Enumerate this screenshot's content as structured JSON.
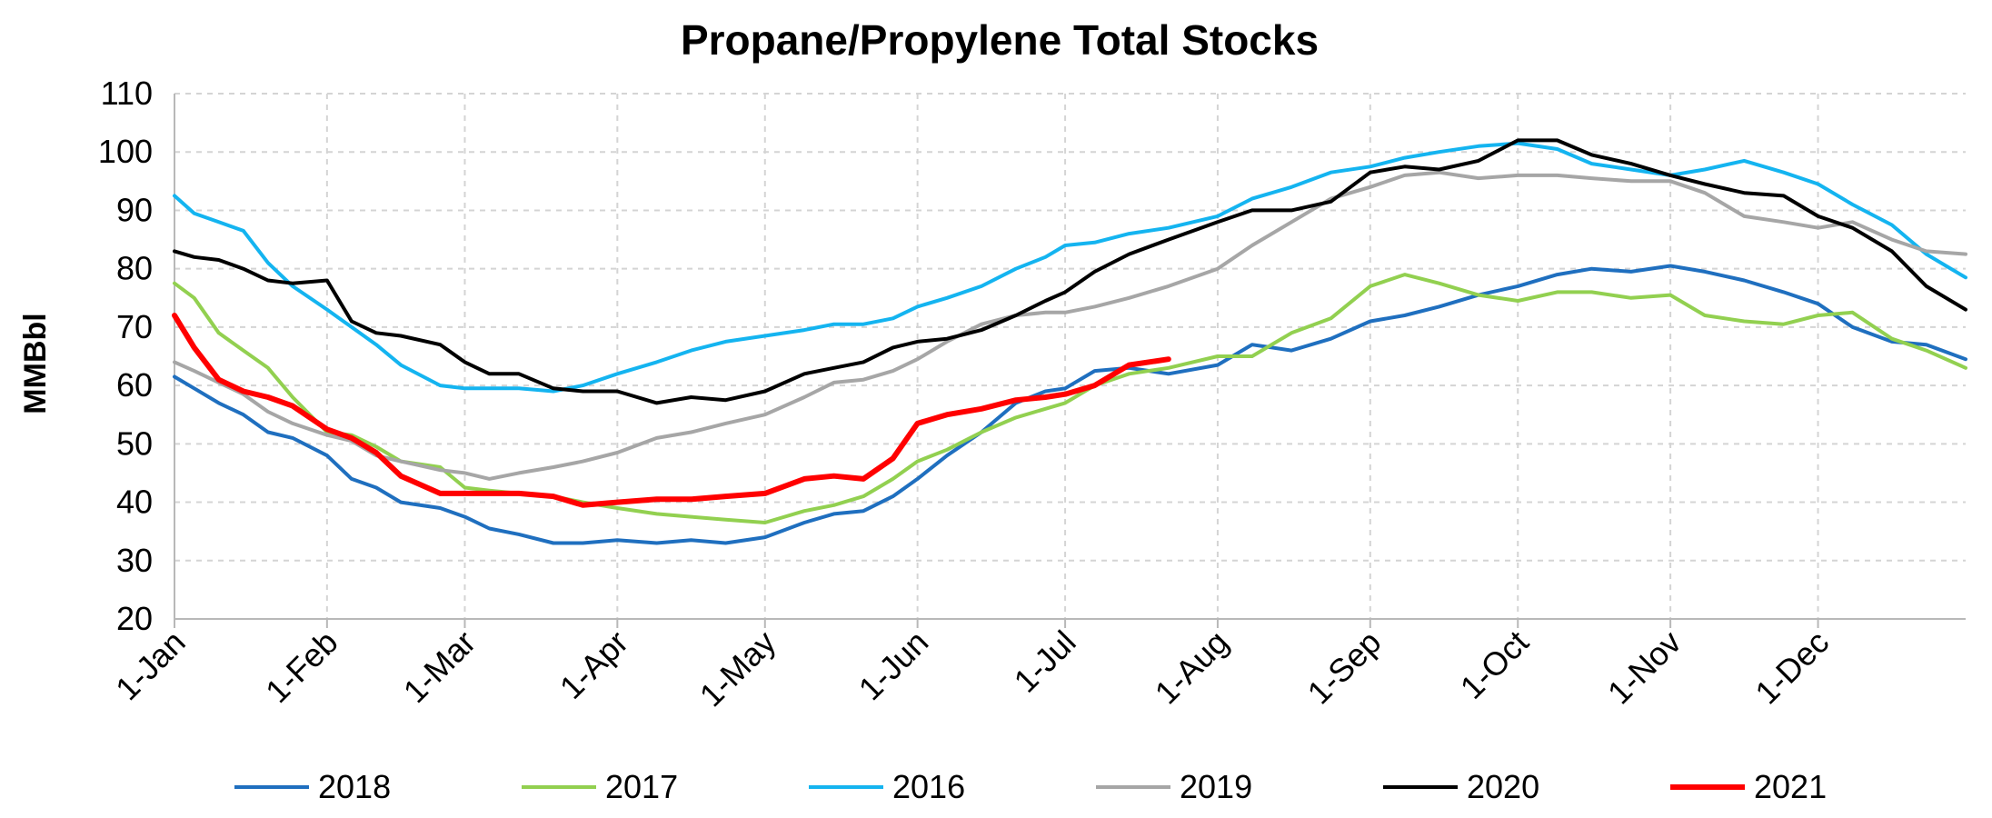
{
  "chart_data": {
    "type": "line",
    "title": "Propane/Propylene Total Stocks",
    "ylabel": "MMBbl",
    "xlabel": "",
    "ylim": [
      20,
      110
    ],
    "y_ticks": [
      "20",
      "30",
      "40",
      "50",
      "60",
      "70",
      "80",
      "90",
      "100",
      "110"
    ],
    "x_domain_days": [
      1,
      365
    ],
    "x_ticks": [
      {
        "label": "1-Jan",
        "day": 1
      },
      {
        "label": "1-Feb",
        "day": 32
      },
      {
        "label": "1-Mar",
        "day": 60
      },
      {
        "label": "1-Apr",
        "day": 91
      },
      {
        "label": "1-May",
        "day": 121
      },
      {
        "label": "1-Jun",
        "day": 152
      },
      {
        "label": "1-Jul",
        "day": 182
      },
      {
        "label": "1-Aug",
        "day": 213
      },
      {
        "label": "1-Sep",
        "day": 244
      },
      {
        "label": "1-Oct",
        "day": 274
      },
      {
        "label": "1-Nov",
        "day": 305
      },
      {
        "label": "1-Dec",
        "day": 335
      }
    ],
    "grid": true,
    "legend_position": "bottom",
    "series": [
      {
        "name": "2018",
        "color": "#1f6fbf",
        "width": 4,
        "x": [
          1,
          5,
          10,
          15,
          20,
          25,
          32,
          37,
          42,
          47,
          55,
          60,
          65,
          71,
          78,
          84,
          91,
          99,
          106,
          113,
          121,
          129,
          135,
          141,
          147,
          152,
          158,
          165,
          172,
          178,
          182,
          188,
          195,
          203,
          213,
          220,
          228,
          236,
          244,
          251,
          258,
          266,
          274,
          282,
          289,
          297,
          305,
          312,
          320,
          328,
          335,
          342,
          350,
          357,
          365
        ],
        "y": [
          61.5,
          59.5,
          57,
          55,
          52,
          51,
          48,
          44,
          42.5,
          40,
          39,
          37.5,
          35.5,
          34.5,
          33,
          33,
          33.5,
          33,
          33.5,
          33,
          34,
          36.5,
          38,
          38.5,
          41,
          44,
          48,
          52,
          57,
          59,
          59.5,
          62.5,
          63,
          62,
          63.5,
          67,
          66,
          68,
          71,
          72,
          73.5,
          75.5,
          77,
          79,
          80,
          79.5,
          80.5,
          79.5,
          78,
          76,
          74,
          70,
          67.5,
          67,
          64.5
        ]
      },
      {
        "name": "2017",
        "color": "#92d050",
        "width": 4,
        "x": [
          1,
          5,
          10,
          15,
          20,
          25,
          32,
          37,
          42,
          47,
          55,
          60,
          65,
          71,
          78,
          84,
          91,
          99,
          106,
          113,
          121,
          129,
          135,
          141,
          147,
          152,
          158,
          165,
          172,
          178,
          182,
          188,
          195,
          203,
          213,
          220,
          228,
          236,
          244,
          251,
          258,
          266,
          274,
          282,
          289,
          297,
          305,
          312,
          320,
          328,
          335,
          342,
          350,
          357,
          365
        ],
        "y": [
          77.5,
          75,
          69,
          66,
          63,
          58,
          52,
          51.5,
          49.5,
          47,
          46,
          42.5,
          42,
          41.5,
          41,
          40,
          39,
          38,
          37.5,
          37,
          36.5,
          38.5,
          39.5,
          41,
          44,
          47,
          49,
          52,
          54.5,
          56,
          57,
          60,
          62,
          63,
          65,
          65,
          69,
          71.5,
          77,
          79,
          77.5,
          75.5,
          74.5,
          76,
          76,
          75,
          75.5,
          72,
          71,
          70.5,
          72,
          72.5,
          68,
          66,
          63
        ]
      },
      {
        "name": "2016",
        "color": "#14b4f0",
        "width": 4,
        "x": [
          1,
          5,
          10,
          15,
          20,
          25,
          32,
          37,
          42,
          47,
          55,
          60,
          65,
          71,
          78,
          84,
          91,
          99,
          106,
          113,
          121,
          129,
          135,
          141,
          147,
          152,
          158,
          165,
          172,
          178,
          182,
          188,
          195,
          203,
          213,
          220,
          228,
          236,
          244,
          251,
          258,
          266,
          274,
          282,
          289,
          297,
          305,
          312,
          320,
          328,
          335,
          342,
          350,
          357,
          365
        ],
        "y": [
          92.5,
          89.5,
          88,
          86.5,
          81,
          77,
          73,
          70,
          67,
          63.5,
          60,
          59.5,
          59.5,
          59.5,
          59,
          60,
          62,
          64,
          66,
          67.5,
          68.5,
          69.5,
          70.5,
          70.5,
          71.5,
          73.5,
          75,
          77,
          80,
          82,
          84,
          84.5,
          86,
          87,
          89,
          92,
          94,
          96.5,
          97.5,
          99,
          100,
          101,
          101.5,
          100.5,
          98,
          97,
          96,
          97,
          98.5,
          96.5,
          94.5,
          91,
          87.5,
          82.5,
          78.5
        ]
      },
      {
        "name": "2019",
        "color": "#a6a6a6",
        "width": 4,
        "x": [
          1,
          5,
          10,
          15,
          20,
          25,
          32,
          37,
          42,
          47,
          55,
          60,
          65,
          71,
          78,
          84,
          91,
          99,
          106,
          113,
          121,
          129,
          135,
          141,
          147,
          152,
          158,
          165,
          172,
          178,
          182,
          188,
          195,
          203,
          213,
          220,
          228,
          236,
          244,
          251,
          258,
          266,
          274,
          282,
          289,
          297,
          305,
          312,
          320,
          328,
          335,
          342,
          350,
          357,
          365
        ],
        "y": [
          64,
          62.5,
          60.5,
          58.5,
          55.5,
          53.5,
          51.5,
          50.5,
          48,
          47,
          45.5,
          45,
          44,
          45,
          46,
          47,
          48.5,
          51,
          52,
          53.5,
          55,
          58,
          60.5,
          61,
          62.5,
          64.5,
          67.5,
          70.5,
          72,
          72.5,
          72.5,
          73.5,
          75,
          77,
          80,
          84,
          88,
          92,
          94,
          96,
          96.5,
          95.5,
          96,
          96,
          95.5,
          95,
          95,
          93,
          89,
          88,
          87,
          88,
          85,
          83,
          82.5
        ]
      },
      {
        "name": "2020",
        "color": "#000000",
        "width": 4,
        "x": [
          1,
          5,
          10,
          15,
          20,
          25,
          32,
          37,
          42,
          47,
          55,
          60,
          65,
          71,
          78,
          84,
          91,
          99,
          106,
          113,
          121,
          129,
          135,
          141,
          147,
          152,
          158,
          165,
          172,
          178,
          182,
          188,
          195,
          203,
          213,
          220,
          228,
          236,
          244,
          251,
          258,
          266,
          274,
          282,
          289,
          297,
          305,
          312,
          320,
          328,
          335,
          342,
          350,
          357,
          365
        ],
        "y": [
          83,
          82,
          81.5,
          80,
          78,
          77.5,
          78,
          71,
          69,
          68.5,
          67,
          64,
          62,
          62,
          59.5,
          59,
          59,
          57,
          58,
          57.5,
          59,
          62,
          63,
          64,
          66.5,
          67.5,
          68,
          69.5,
          72,
          74.5,
          76,
          79.5,
          82.5,
          85,
          88,
          90,
          90,
          91.5,
          96.5,
          97.5,
          97,
          98.5,
          102,
          102,
          99.5,
          98,
          96,
          94.5,
          93,
          92.5,
          89,
          87,
          83,
          77,
          73
        ]
      },
      {
        "name": "2021",
        "color": "#ff0000",
        "width": 6,
        "x": [
          1,
          5,
          10,
          15,
          20,
          25,
          32,
          37,
          42,
          47,
          55,
          60,
          65,
          71,
          78,
          84,
          91,
          99,
          106,
          113,
          121,
          129,
          135,
          141,
          147,
          152,
          158,
          165,
          172,
          178,
          182,
          188,
          195,
          203
        ],
        "y": [
          72,
          66.5,
          61,
          59,
          58,
          56.5,
          52.5,
          51,
          48.5,
          44.5,
          41.5,
          41.5,
          41.5,
          41.5,
          41,
          39.5,
          40,
          40.5,
          40.5,
          41,
          41.5,
          44,
          44.5,
          44,
          47.5,
          53.5,
          55,
          56,
          57.5,
          58,
          58.5,
          60,
          63.5,
          64.5
        ]
      }
    ]
  }
}
